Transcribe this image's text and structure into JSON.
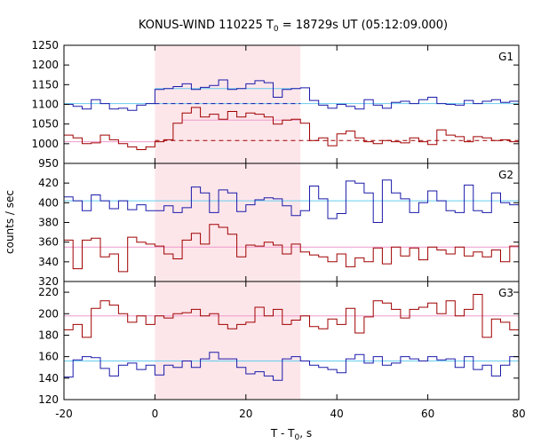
{
  "chart_data": {
    "type": "line",
    "title": "KONUS-WIND 110225 T",
    "title_sub": "0",
    "title_rest": " = 18729s UT (05:12:09.000)",
    "xlabel": "T - T",
    "xlabel_sub": "0",
    "xlabel_rest": ", s",
    "ylabel": "counts / sec",
    "xlim": [
      -20,
      80
    ],
    "x_ticks": [
      -20,
      0,
      20,
      40,
      60,
      80
    ],
    "x_tick_labels": [
      "-20",
      "0",
      "20",
      "40",
      "60",
      "80"
    ],
    "highlight_interval": [
      0,
      32
    ],
    "grid": false,
    "colors": {
      "blue": "#1a1aaa",
      "red": "#a00000",
      "cyan_fit": "#66ccee",
      "pink_fit": "#ee99cc",
      "highlight": "#fde6ea"
    },
    "x_edges": [
      -20,
      -18,
      -16,
      -14,
      -12,
      -10,
      -8,
      -6,
      -4,
      -2,
      0,
      2,
      4,
      6,
      8,
      10,
      12,
      14,
      16,
      18,
      20,
      22,
      24,
      26,
      28,
      30,
      32,
      34,
      36,
      38,
      40,
      42,
      44,
      46,
      48,
      50,
      52,
      54,
      56,
      58,
      60,
      62,
      64,
      66,
      68,
      70,
      72,
      74,
      76,
      78,
      80
    ],
    "panels": [
      {
        "label": "G1",
        "ylim": [
          950,
          1250
        ],
        "y_ticks": [
          950,
          1000,
          1050,
          1100,
          1150,
          1200,
          1250
        ],
        "y_tick_labels": [
          "950",
          "1000",
          "1050",
          "1100",
          "1150",
          "1200",
          "1250"
        ],
        "series": [
          {
            "color": "blue",
            "values": [
              1100,
              1095,
              1088,
              1112,
              1102,
              1088,
              1090,
              1085,
              1098,
              1102,
              1138,
              1140,
              1145,
              1152,
              1138,
              1143,
              1148,
              1162,
              1138,
              1140,
              1152,
              1160,
              1155,
              1118,
              1138,
              1140,
              1142,
              1110,
              1098,
              1090,
              1100,
              1095,
              1088,
              1112,
              1098,
              1090,
              1105,
              1108,
              1102,
              1112,
              1118,
              1102,
              1100,
              1098,
              1110,
              1102,
              1108,
              1112,
              1105,
              1108
            ]
          },
          {
            "color": "red",
            "values": [
              1022,
              1015,
              1000,
              1002,
              1022,
              1010,
              1000,
              992,
              985,
              992,
              1005,
              1010,
              1052,
              1078,
              1092,
              1068,
              1075,
              1062,
              1082,
              1068,
              1078,
              1075,
              1068,
              1050,
              1060,
              1062,
              1052,
              1008,
              1015,
              995,
              1025,
              1032,
              1015,
              1005,
              1000,
              1008,
              1005,
              1002,
              1015,
              1005,
              998,
              1035,
              1022,
              1018,
              1005,
              1018,
              1015,
              1008,
              1010,
              1005
            ]
          }
        ],
        "fits": [
          {
            "color": "cyan_fit",
            "style": "solid",
            "x": [
              -20,
              80
            ],
            "y": [
              1102,
              1102
            ]
          },
          {
            "color": "blue",
            "style": "dashed",
            "x": [
              0,
              32
            ],
            "y": [
              1102,
              1102
            ]
          },
          {
            "color": "cyan_fit",
            "style": "solid",
            "x": [
              0,
              32
            ],
            "y": [
              1140,
              1140
            ]
          },
          {
            "color": "pink_fit",
            "style": "solid",
            "x": [
              -20,
              0
            ],
            "y": [
              1005,
              1005
            ]
          },
          {
            "color": "red",
            "style": "dashed",
            "x": [
              0,
              80
            ],
            "y": [
              1008,
              1008
            ]
          },
          {
            "color": "pink_fit",
            "style": "solid",
            "x": [
              6,
              32
            ],
            "y": [
              1060,
              1060
            ]
          }
        ]
      },
      {
        "label": "G2",
        "ylim": [
          320,
          440
        ],
        "y_ticks": [
          320,
          340,
          360,
          380,
          400,
          420
        ],
        "y_tick_labels": [
          "320",
          "340",
          "360",
          "380",
          "400",
          "420"
        ],
        "series": [
          {
            "color": "blue",
            "values": [
              406,
              402,
              392,
              408,
              402,
              394,
              402,
              393,
              398,
              392,
              392,
              397,
              390,
              395,
              416,
              410,
              390,
              413,
              410,
              391,
              398,
              403,
              405,
              404,
              397,
              387,
              392,
              417,
              404,
              384,
              389,
              422,
              420,
              410,
              380,
              423,
              410,
              404,
              390,
              400,
              412,
              402,
              392,
              390,
              418,
              392,
              390,
              410,
              400,
              398
            ]
          },
          {
            "color": "red",
            "values": [
              362,
              333,
              362,
              364,
              345,
              348,
              330,
              365,
              360,
              358,
              356,
              348,
              343,
              362,
              369,
              358,
              378,
              375,
              368,
              345,
              357,
              356,
              360,
              357,
              348,
              358,
              350,
              347,
              345,
              340,
              348,
              335,
              344,
              340,
              354,
              338,
              355,
              346,
              354,
              342,
              355,
              352,
              348,
              355,
              346,
              350,
              345,
              352,
              340,
              356
            ]
          }
        ],
        "fits": [
          {
            "color": "cyan_fit",
            "style": "solid",
            "x": [
              -20,
              80
            ],
            "y": [
              402,
              402
            ]
          },
          {
            "color": "pink_fit",
            "style": "solid",
            "x": [
              -20,
              80
            ],
            "y": [
              355,
              355
            ]
          }
        ]
      },
      {
        "label": "G3",
        "ylim": [
          120,
          230
        ],
        "y_ticks": [
          120,
          140,
          160,
          180,
          200,
          220
        ],
        "y_tick_labels": [
          "120",
          "140",
          "160",
          "180",
          "200",
          "220"
        ],
        "series": [
          {
            "color": "red",
            "values": [
              185,
              190,
              178,
              205,
              212,
              208,
              200,
              192,
              198,
              190,
              198,
              196,
              200,
              201,
              204,
              198,
              200,
              190,
              186,
              190,
              192,
              206,
              198,
              204,
              190,
              194,
              198,
              188,
              186,
              195,
              190,
              205,
              182,
              197,
              212,
              210,
              204,
              196,
              204,
              206,
              210,
              200,
              212,
              198,
              204,
              218,
              178,
              195,
              192,
              185
            ]
          },
          {
            "color": "blue",
            "values": [
              141,
              157,
              160,
              159,
              149,
              142,
              152,
              154,
              148,
              152,
              143,
              152,
              150,
              156,
              150,
              158,
              164,
              158,
              158,
              150,
              144,
              146,
              142,
              138,
              158,
              160,
              156,
              152,
              150,
              148,
              145,
              158,
              162,
              154,
              160,
              152,
              154,
              160,
              158,
              156,
              160,
              157,
              158,
              150,
              160,
              148,
              152,
              142,
              152,
              160
            ]
          }
        ],
        "fits": [
          {
            "color": "pink_fit",
            "style": "solid",
            "x": [
              -20,
              80
            ],
            "y": [
              198,
              198
            ]
          },
          {
            "color": "cyan_fit",
            "style": "solid",
            "x": [
              -20,
              80
            ],
            "y": [
              156,
              156
            ]
          }
        ]
      }
    ]
  }
}
